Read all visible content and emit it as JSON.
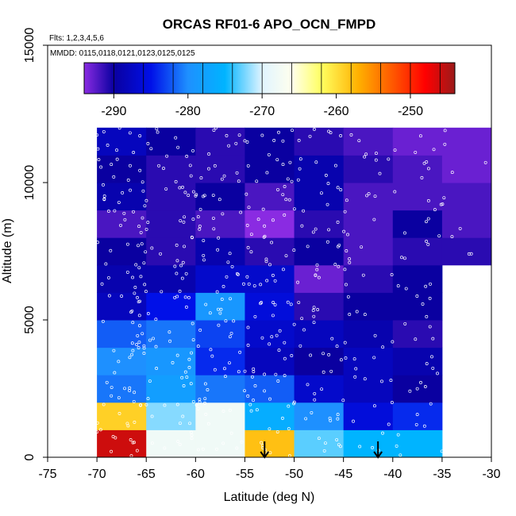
{
  "chart_data": {
    "type": "heatmap",
    "title": "ORCAS RF01-6 APO_OCN_FMPD",
    "notes": {
      "flights": "Flts: 1,2,3,4,5,6",
      "dates": "MMDD: 0115,0118,0121,0123,0125,0125"
    },
    "xlabel": "Latitude (deg N)",
    "ylabel": "Altitude (m)",
    "xlim": [
      -75,
      -30
    ],
    "ylim": [
      0,
      15000
    ],
    "x_ticks": [
      -75,
      -70,
      -65,
      -60,
      -55,
      -50,
      -45,
      -40,
      -35,
      -30
    ],
    "y_ticks": [
      0,
      5000,
      10000,
      15000
    ],
    "colorbar": {
      "range": [
        -294,
        -244
      ],
      "ticks": [
        -290,
        -280,
        -270,
        -260,
        -250
      ],
      "stops": [
        [
          -294,
          "#8a2be2"
        ],
        [
          -290,
          "#0a00a0"
        ],
        [
          -285,
          "#0010e8"
        ],
        [
          -280,
          "#1e90ff"
        ],
        [
          -275,
          "#00b4ff"
        ],
        [
          -270,
          "#e0f4ff"
        ],
        [
          -266,
          "#ffffee"
        ],
        [
          -262,
          "#ffff60"
        ],
        [
          -257,
          "#ffb000"
        ],
        [
          -252,
          "#ff5000"
        ],
        [
          -248,
          "#ff0000"
        ],
        [
          -244,
          "#9b1a1a"
        ]
      ]
    },
    "lat_bins": [
      -70,
      -65,
      -60,
      -55,
      -50,
      -45,
      -40,
      -35,
      -30
    ],
    "alt_bins": [
      0,
      1000,
      2000,
      3000,
      4000,
      5000,
      6000,
      7000,
      8000,
      9000,
      10000,
      11000,
      12000
    ],
    "grid": [
      [
        -246,
        -268,
        -268,
        -258,
        -273,
        -275,
        -275,
        null
      ],
      [
        -259,
        -272,
        -268,
        -276,
        -280,
        -286,
        -284,
        null
      ],
      [
        -281,
        -278,
        -281,
        -282,
        -287,
        -288,
        -290,
        null
      ],
      [
        -280,
        -279,
        -284,
        -288,
        -290,
        -288,
        -289,
        null
      ],
      [
        -282,
        -281,
        -283,
        -287,
        -288,
        -289,
        -291,
        null
      ],
      [
        -288,
        -285,
        -279,
        -286,
        -291,
        -290,
        -290,
        null
      ],
      [
        -289,
        -289,
        -287,
        -287,
        -293,
        -291,
        -290,
        null
      ],
      [
        -290,
        -291,
        -289,
        -291,
        -290,
        -292,
        -291,
        -291
      ],
      [
        -292,
        -291,
        -292,
        -294,
        -291,
        -292,
        -290,
        -292
      ],
      [
        -289,
        -291,
        -290,
        -292,
        -289,
        -292,
        -292,
        -292
      ],
      [
        -290,
        -291,
        -291,
        -290,
        -289,
        -291,
        -292,
        -293
      ],
      [
        -288,
        -290,
        -291,
        -290,
        -291,
        -292,
        -293,
        -293
      ]
    ],
    "arrows_lat": [
      -53,
      -41.5
    ]
  }
}
